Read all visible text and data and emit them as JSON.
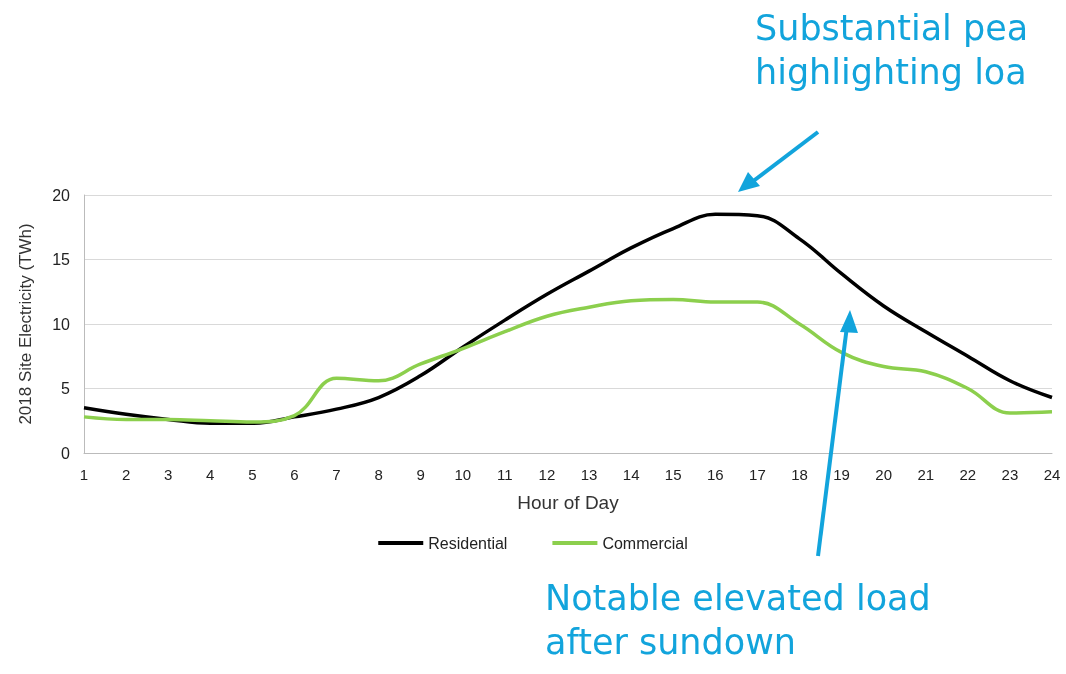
{
  "chart_data": {
    "type": "line",
    "xlabel": "Hour of Day",
    "ylabel": "2018 Site Electricity (TWh)",
    "x": [
      1,
      2,
      3,
      4,
      5,
      6,
      7,
      8,
      9,
      10,
      11,
      12,
      13,
      14,
      15,
      16,
      17,
      18,
      19,
      20,
      21,
      22,
      23,
      24
    ],
    "xlim": [
      1,
      24
    ],
    "xticks": [
      1,
      2,
      3,
      4,
      5,
      6,
      7,
      8,
      9,
      10,
      11,
      12,
      13,
      14,
      15,
      16,
      17,
      18,
      19,
      20,
      21,
      22,
      23,
      24
    ],
    "series": [
      {
        "name": "Residential",
        "color": "#000000",
        "values": [
          3.5,
          3.0,
          2.6,
          2.3,
          2.3,
          2.8,
          3.4,
          4.3,
          6.0,
          8.2,
          10.3,
          12.3,
          14.1,
          15.9,
          17.4,
          18.5,
          18.4,
          16.6,
          13.9,
          11.4,
          9.4,
          7.5,
          5.6,
          4.3
        ]
      },
      {
        "name": "Commercial",
        "color": "#8ccf4d",
        "values": [
          2.8,
          2.6,
          2.6,
          2.5,
          2.4,
          2.9,
          5.8,
          5.6,
          6.9,
          8.1,
          9.4,
          10.6,
          11.3,
          11.8,
          11.9,
          11.7,
          11.7,
          10.0,
          7.8,
          6.7,
          6.3,
          5.0,
          3.1,
          3.2
        ]
      }
    ],
    "ylim": [
      0,
      20
    ],
    "yticks": [
      0,
      5,
      10,
      15,
      20
    ],
    "grid": "y",
    "legend": "bottom",
    "marker": "none",
    "line_style": "solid",
    "annotations": [
      "Substantial pea\nhighlighting loa",
      "Notable elevated load\nafter sundown"
    ]
  }
}
